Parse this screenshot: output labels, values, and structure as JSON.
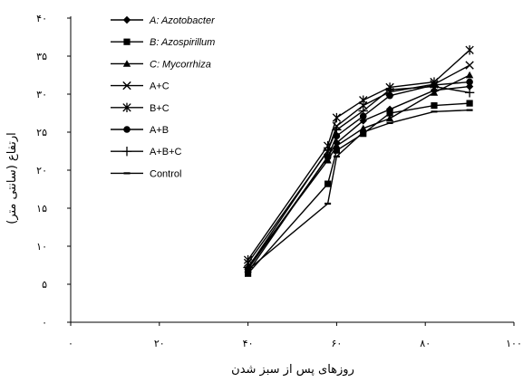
{
  "chart_data": {
    "type": "line",
    "xlabel": "روزهای پس از سبز شدن",
    "ylabel": "ارتفاع (سانتی متر)",
    "xlim": [
      0,
      100
    ],
    "ylim": [
      0,
      40
    ],
    "x_tick_labels": [
      "۰",
      "۲۰",
      "۴۰",
      "۶۰",
      "۸۰",
      "۱۰۰"
    ],
    "y_tick_labels": [
      "۰",
      "۵",
      "۱۰",
      "۱۵",
      "۲۰",
      "۲۵",
      "۳۰",
      "۳۵",
      "۴۰"
    ],
    "x_tick_values": [
      0,
      20,
      40,
      60,
      80,
      100
    ],
    "y_tick_values": [
      0,
      5,
      10,
      15,
      20,
      25,
      30,
      35,
      40
    ],
    "grid": false,
    "legend_position": "top-left",
    "x": [
      40,
      58,
      60,
      66,
      72,
      82,
      90
    ],
    "series": [
      {
        "name": "A: Azotobacter",
        "italic": true,
        "marker": "diamond",
        "values": [
          6.6,
          21.8,
          23.6,
          26.5,
          28.0,
          30.5,
          31.0
        ]
      },
      {
        "name": "B: Azospirillum",
        "italic": true,
        "marker": "square",
        "values": [
          6.4,
          18.2,
          22.6,
          24.8,
          27.5,
          28.5,
          28.8
        ]
      },
      {
        "name": "C: Mycorrhiza",
        "italic": true,
        "marker": "triangle",
        "values": [
          7.3,
          21.3,
          23.2,
          25.5,
          26.8,
          30.2,
          32.5
        ]
      },
      {
        "name": "A+C",
        "italic": false,
        "marker": "x",
        "values": [
          7.8,
          22.5,
          25.8,
          28.5,
          30.3,
          31.3,
          33.8
        ]
      },
      {
        "name": "B+C",
        "italic": false,
        "marker": "asterisk",
        "values": [
          8.2,
          23.2,
          26.9,
          29.2,
          30.9,
          31.6,
          35.8
        ]
      },
      {
        "name": "A+B",
        "italic": false,
        "marker": "circle",
        "values": [
          7.0,
          21.7,
          24.5,
          27.1,
          29.8,
          31.2,
          31.6
        ]
      },
      {
        "name": "A+B+C",
        "italic": false,
        "marker": "plus",
        "values": [
          7.2,
          22.6,
          25.3,
          27.8,
          30.6,
          31.0,
          30.2
        ]
      },
      {
        "name": "Control",
        "italic": false,
        "marker": "dash",
        "values": [
          6.9,
          15.6,
          21.8,
          25.0,
          26.2,
          27.7,
          27.9
        ]
      }
    ]
  }
}
